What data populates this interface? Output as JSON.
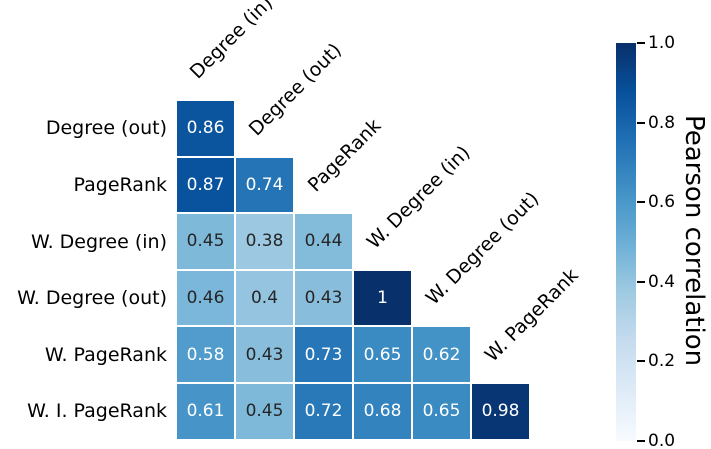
{
  "figure": {
    "background": "#ffffff",
    "label_color": "#000000"
  },
  "chart_data": {
    "type": "heatmap",
    "shape": "lower-triangle",
    "row_labels": [
      "Degree (out)",
      "PageRank",
      "W. Degree (in)",
      "W. Degree (out)",
      "W. PageRank",
      "W. I. PageRank"
    ],
    "col_labels": [
      "Degree (in)",
      "Degree (out)",
      "PageRank",
      "W. Degree (in)",
      "W. Degree (out)",
      "W. PageRank"
    ],
    "matrix": [
      [
        0.86
      ],
      [
        0.87,
        0.74
      ],
      [
        0.45,
        0.38,
        0.44
      ],
      [
        0.46,
        0.4,
        0.43,
        1
      ],
      [
        0.58,
        0.43,
        0.73,
        0.65,
        0.62
      ],
      [
        0.61,
        0.45,
        0.72,
        0.68,
        0.65,
        0.98
      ]
    ],
    "value_range": [
      0.0,
      1.0
    ],
    "grid_line_color": "#ffffff",
    "annotation_colors": {
      "light": "#ffffff",
      "dark": "#262626"
    },
    "colormap": {
      "name": "Blues",
      "stops": [
        "#f7fbff",
        "#deebf7",
        "#c6dbef",
        "#9ecae1",
        "#6baed6",
        "#4292c6",
        "#2171b5",
        "#08519c",
        "#08306b"
      ]
    },
    "colorbar": {
      "label": "Pearson correlation",
      "ticks": [
        "1.0",
        "0.8",
        "0.6",
        "0.4",
        "0.2",
        "0.0"
      ],
      "tick_values": [
        1.0,
        0.8,
        0.6,
        0.4,
        0.2,
        0.0
      ],
      "orientation": "vertical",
      "position": "right"
    }
  }
}
